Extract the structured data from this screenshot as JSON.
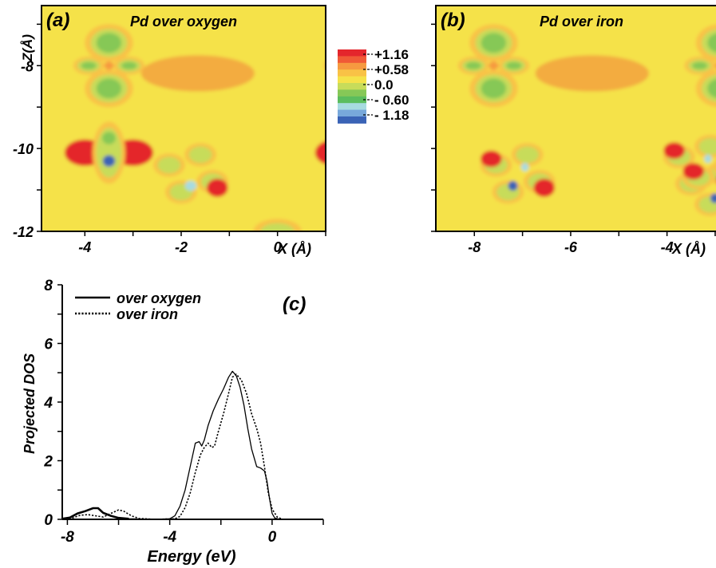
{
  "panels": [
    {
      "id": "a",
      "tag": "(a)",
      "title": "Pd over oxygen",
      "xlabel": "X (Å)",
      "ylabel": "Z(Å)",
      "xlim": [
        -4.9,
        1.0
      ],
      "ylim": [
        -12.0,
        -6.55
      ],
      "xticks": [
        "-4",
        "-2",
        "0"
      ],
      "xtick_values": [
        -4,
        -2,
        0
      ],
      "yticks": [
        "-8",
        "-10",
        "-12"
      ],
      "ytick_values": [
        -8,
        -10,
        -12
      ]
    },
    {
      "id": "b",
      "tag": "(b)",
      "title": "Pd over iron",
      "xlabel": "X (Å)",
      "xlim": [
        -8.8,
        -2.9
      ],
      "ylim": [
        -12.0,
        -6.55
      ],
      "xticks": [
        "-8",
        "-6",
        "-4"
      ],
      "xtick_values": [
        -8,
        -6,
        -4
      ]
    }
  ],
  "colorbar": {
    "labels": [
      "+1.16",
      "+0.58",
      "0.0",
      "- 0.60",
      "- 1.18"
    ],
    "colors": [
      "#e4262c",
      "#f05a36",
      "#f69a40",
      "#f9c246",
      "#f5e24a",
      "#c7dc5a",
      "#86c857",
      "#5bbd5e",
      "#a7dbe0",
      "#78a8db",
      "#3a63b6"
    ]
  },
  "chart_data": [
    {
      "type": "heatmap",
      "panel": "a",
      "title": "Pd over oxygen",
      "xlabel": "X (Å)",
      "ylabel": "Z(Å)",
      "x_range": [
        -4.9,
        1.0
      ],
      "y_range": [
        -12.0,
        -6.55
      ],
      "value_range": [
        -1.18,
        1.16
      ],
      "background_value": 0.25,
      "features": [
        {
          "kind": "dxy_lobes",
          "x": -3.5,
          "y": -8.0,
          "sign": "negative"
        },
        {
          "kind": "dxy_lobes",
          "x": 1.7,
          "y": -8.0,
          "sign": "negative"
        },
        {
          "kind": "dz2_pd",
          "x": -3.5,
          "y": -10.1
        },
        {
          "kind": "dz2_pd",
          "x": 1.7,
          "y": -10.1
        },
        {
          "kind": "cross_o",
          "x": -1.8,
          "y": -10.6
        },
        {
          "kind": "blob",
          "x": 0.0,
          "y": -12.0,
          "sign": "negative"
        }
      ]
    },
    {
      "type": "heatmap",
      "panel": "b",
      "title": "Pd over iron",
      "xlabel": "X (Å)",
      "x_range": [
        -8.8,
        -2.9
      ],
      "y_range": [
        -12.0,
        -6.55
      ],
      "value_range": [
        -1.18,
        1.16
      ],
      "background_value": 0.25,
      "features": [
        {
          "kind": "dxy_lobes",
          "x": -7.6,
          "y": -8.0,
          "sign": "negative"
        },
        {
          "kind": "dxy_lobes",
          "x": -2.9,
          "y": -8.0,
          "sign": "negative"
        },
        {
          "kind": "cross_fe",
          "x": -7.1,
          "y": -10.6
        },
        {
          "kind": "cross_fe",
          "x": -3.3,
          "y": -10.4
        },
        {
          "kind": "cross_fe",
          "x": -2.9,
          "y": -10.9
        }
      ]
    },
    {
      "type": "line",
      "panel": "c",
      "tag": "(c)",
      "xlabel": "Energy (eV)",
      "ylabel": "Projected DOS",
      "xlim": [
        -8.2,
        2.0
      ],
      "ylim": [
        0,
        8
      ],
      "xticks": [
        "-8",
        "-4",
        "0"
      ],
      "xtick_values": [
        -8,
        -4,
        0
      ],
      "yticks": [
        "0",
        "2",
        "4",
        "6",
        "8"
      ],
      "ytick_values": [
        0,
        2,
        4,
        6,
        8
      ],
      "series": [
        {
          "name": "over oxygen",
          "style": "solid",
          "points": [
            [
              -8.2,
              0.02
            ],
            [
              -7.9,
              0.06
            ],
            [
              -7.6,
              0.2
            ],
            [
              -7.3,
              0.28
            ],
            [
              -7.0,
              0.38
            ],
            [
              -6.8,
              0.38
            ],
            [
              -6.6,
              0.22
            ],
            [
              -6.3,
              0.12
            ],
            [
              -6.0,
              0.05
            ],
            [
              -5.6,
              0.02
            ],
            [
              -4.6,
              0.0
            ],
            [
              -4.0,
              0.02
            ],
            [
              -3.8,
              0.12
            ],
            [
              -3.6,
              0.45
            ],
            [
              -3.4,
              1.0
            ],
            [
              -3.2,
              1.8
            ],
            [
              -3.0,
              2.6
            ],
            [
              -2.85,
              2.65
            ],
            [
              -2.75,
              2.5
            ],
            [
              -2.65,
              2.7
            ],
            [
              -2.5,
              3.2
            ],
            [
              -2.3,
              3.7
            ],
            [
              -2.1,
              4.1
            ],
            [
              -1.9,
              4.45
            ],
            [
              -1.7,
              4.85
            ],
            [
              -1.55,
              5.05
            ],
            [
              -1.4,
              4.9
            ],
            [
              -1.25,
              4.5
            ],
            [
              -1.1,
              3.9
            ],
            [
              -0.95,
              3.1
            ],
            [
              -0.8,
              2.4
            ],
            [
              -0.6,
              1.8
            ],
            [
              -0.45,
              1.75
            ],
            [
              -0.3,
              1.65
            ],
            [
              -0.2,
              1.3
            ],
            [
              -0.1,
              0.7
            ],
            [
              0.0,
              0.2
            ],
            [
              0.1,
              0.05
            ],
            [
              0.3,
              0.0
            ],
            [
              2.0,
              0.0
            ]
          ]
        },
        {
          "name": "over iron",
          "style": "dotted",
          "points": [
            [
              -8.2,
              0.0
            ],
            [
              -7.8,
              0.05
            ],
            [
              -7.5,
              0.14
            ],
            [
              -7.2,
              0.16
            ],
            [
              -6.9,
              0.12
            ],
            [
              -6.6,
              0.08
            ],
            [
              -6.3,
              0.2
            ],
            [
              -6.0,
              0.32
            ],
            [
              -5.8,
              0.28
            ],
            [
              -5.5,
              0.12
            ],
            [
              -5.2,
              0.03
            ],
            [
              -4.6,
              0.0
            ],
            [
              -3.8,
              0.02
            ],
            [
              -3.6,
              0.1
            ],
            [
              -3.4,
              0.4
            ],
            [
              -3.2,
              0.9
            ],
            [
              -3.0,
              1.6
            ],
            [
              -2.8,
              2.2
            ],
            [
              -2.65,
              2.45
            ],
            [
              -2.5,
              2.6
            ],
            [
              -2.35,
              2.45
            ],
            [
              -2.25,
              2.5
            ],
            [
              -2.1,
              3.0
            ],
            [
              -1.9,
              3.6
            ],
            [
              -1.7,
              4.3
            ],
            [
              -1.55,
              4.85
            ],
            [
              -1.4,
              4.95
            ],
            [
              -1.2,
              4.75
            ],
            [
              -1.0,
              4.3
            ],
            [
              -0.8,
              3.6
            ],
            [
              -0.6,
              3.1
            ],
            [
              -0.45,
              2.6
            ],
            [
              -0.3,
              1.8
            ],
            [
              -0.15,
              0.9
            ],
            [
              0.0,
              0.35
            ],
            [
              0.2,
              0.08
            ],
            [
              0.4,
              0.0
            ],
            [
              2.0,
              0.0
            ]
          ]
        }
      ]
    }
  ]
}
